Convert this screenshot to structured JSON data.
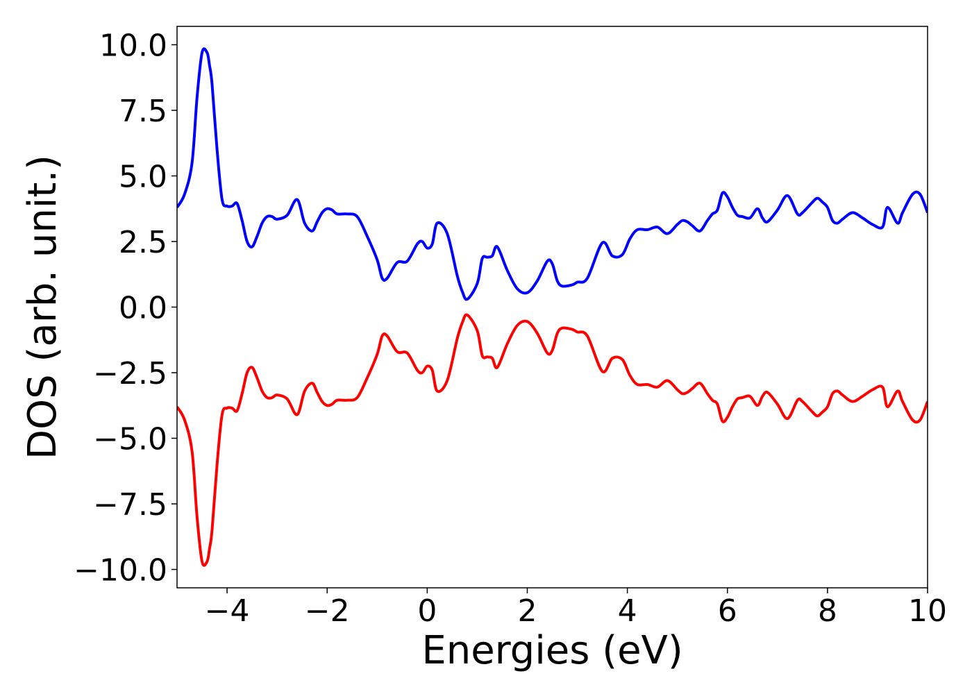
{
  "chart_data": {
    "type": "line",
    "title": "",
    "xlabel": "Energies (eV)",
    "ylabel": "DOS (arb. unit.)",
    "xlim": [
      -5,
      10
    ],
    "ylim": [
      -10.7,
      10.7
    ],
    "xticks": [
      -4,
      -2,
      0,
      2,
      4,
      6,
      8,
      10
    ],
    "xtick_labels": [
      "−4",
      "−2",
      "0",
      "2",
      "4",
      "6",
      "8",
      "10"
    ],
    "yticks": [
      10,
      7.5,
      5,
      2.5,
      0,
      -2.5,
      -5,
      -7.5,
      -10
    ],
    "ytick_labels": [
      "10.0",
      "7.5",
      "5.0",
      "2.5",
      "0.0",
      "−2.5",
      "−5.0",
      "−7.5",
      "−10.0"
    ],
    "grid": false,
    "legend": "none",
    "series": [
      {
        "color": "#0000ff",
        "x": [
          -5.0,
          -4.85,
          -4.7,
          -4.6,
          -4.5,
          -4.4,
          -4.35,
          -4.3,
          -4.2,
          -4.1,
          -4.0,
          -3.9,
          -3.8,
          -3.7,
          -3.6,
          -3.5,
          -3.4,
          -3.3,
          -3.2,
          -3.1,
          -3.0,
          -2.8,
          -2.6,
          -2.45,
          -2.3,
          -2.2,
          -2.1,
          -2.0,
          -1.9,
          -1.8,
          -1.6,
          -1.4,
          -1.2,
          -1.0,
          -0.9,
          -0.8,
          -0.6,
          -0.4,
          -0.2,
          -0.1,
          0.0,
          0.1,
          0.2,
          0.4,
          0.6,
          0.7,
          0.8,
          1.0,
          1.1,
          1.2,
          1.3,
          1.4,
          1.6,
          1.8,
          2.0,
          2.2,
          2.4,
          2.5,
          2.6,
          2.7,
          2.9,
          3.0,
          3.2,
          3.5,
          3.7,
          3.9,
          4.05,
          4.2,
          4.4,
          4.6,
          4.8,
          5.0,
          5.1,
          5.2,
          5.3,
          5.45,
          5.6,
          5.7,
          5.8,
          5.9,
          6.0,
          6.1,
          6.2,
          6.3,
          6.45,
          6.6,
          6.7,
          6.8,
          7.0,
          7.2,
          7.4,
          7.5,
          7.7,
          7.8,
          7.9,
          8.0,
          8.1,
          8.2,
          8.3,
          8.5,
          8.7,
          8.9,
          9.1,
          9.2,
          9.4,
          9.5,
          9.7,
          9.85,
          10.0
        ],
        "y": [
          3.8,
          4.3,
          5.5,
          8.0,
          9.7,
          9.7,
          9.2,
          8.5,
          6.0,
          4.1,
          3.85,
          3.85,
          3.95,
          3.3,
          2.5,
          2.3,
          2.7,
          3.2,
          3.45,
          3.45,
          3.35,
          3.5,
          4.1,
          3.2,
          2.9,
          3.25,
          3.6,
          3.75,
          3.7,
          3.55,
          3.55,
          3.45,
          2.7,
          1.8,
          1.1,
          1.1,
          1.7,
          1.75,
          2.4,
          2.5,
          2.25,
          2.4,
          3.2,
          2.8,
          1.2,
          0.6,
          0.3,
          0.9,
          1.85,
          1.9,
          1.95,
          2.3,
          1.4,
          0.7,
          0.55,
          1.0,
          1.75,
          1.65,
          1.0,
          0.8,
          0.85,
          0.95,
          1.1,
          2.45,
          1.95,
          2.0,
          2.6,
          2.95,
          2.95,
          3.05,
          2.8,
          3.15,
          3.3,
          3.25,
          3.1,
          2.9,
          3.3,
          3.55,
          3.7,
          4.35,
          4.2,
          3.8,
          3.5,
          3.45,
          3.4,
          3.75,
          3.4,
          3.25,
          3.7,
          4.25,
          3.55,
          3.6,
          4.0,
          4.15,
          4.0,
          3.8,
          3.3,
          3.2,
          3.35,
          3.6,
          3.4,
          3.15,
          3.05,
          3.8,
          3.2,
          3.6,
          4.3,
          4.3,
          3.6
        ],
        "_note": ""
      },
      {
        "color": "#ff0000",
        "x": [
          -5.0,
          -4.85,
          -4.7,
          -4.6,
          -4.5,
          -4.4,
          -4.35,
          -4.3,
          -4.2,
          -4.1,
          -4.0,
          -3.9,
          -3.8,
          -3.7,
          -3.6,
          -3.5,
          -3.4,
          -3.3,
          -3.2,
          -3.1,
          -3.0,
          -2.8,
          -2.6,
          -2.45,
          -2.3,
          -2.2,
          -2.1,
          -2.0,
          -1.9,
          -1.8,
          -1.6,
          -1.4,
          -1.2,
          -1.0,
          -0.9,
          -0.8,
          -0.6,
          -0.4,
          -0.2,
          -0.1,
          0.0,
          0.1,
          0.2,
          0.4,
          0.6,
          0.7,
          0.8,
          1.0,
          1.1,
          1.2,
          1.3,
          1.4,
          1.6,
          1.8,
          2.0,
          2.2,
          2.4,
          2.5,
          2.6,
          2.7,
          2.9,
          3.0,
          3.2,
          3.5,
          3.7,
          3.9,
          4.05,
          4.2,
          4.4,
          4.6,
          4.8,
          5.0,
          5.1,
          5.2,
          5.3,
          5.45,
          5.6,
          5.7,
          5.8,
          5.9,
          6.0,
          6.1,
          6.2,
          6.3,
          6.45,
          6.6,
          6.7,
          6.8,
          7.0,
          7.2,
          7.4,
          7.5,
          7.7,
          7.8,
          7.9,
          8.0,
          8.1,
          8.2,
          8.3,
          8.5,
          8.7,
          8.9,
          9.1,
          9.2,
          9.4,
          9.5,
          9.7,
          9.85,
          10.0
        ],
        "y": [
          -3.8,
          -4.3,
          -5.5,
          -8.0,
          -9.7,
          -9.7,
          -9.2,
          -8.5,
          -6.0,
          -4.1,
          -3.85,
          -3.85,
          -3.95,
          -3.3,
          -2.5,
          -2.3,
          -2.7,
          -3.2,
          -3.45,
          -3.45,
          -3.35,
          -3.5,
          -4.1,
          -3.2,
          -2.9,
          -3.25,
          -3.6,
          -3.75,
          -3.7,
          -3.55,
          -3.55,
          -3.45,
          -2.7,
          -1.8,
          -1.1,
          -1.1,
          -1.7,
          -1.75,
          -2.4,
          -2.5,
          -2.25,
          -2.4,
          -3.2,
          -2.8,
          -1.2,
          -0.6,
          -0.3,
          -0.9,
          -1.85,
          -1.9,
          -1.95,
          -2.3,
          -1.4,
          -0.7,
          -0.55,
          -1.0,
          -1.75,
          -1.65,
          -1.0,
          -0.8,
          -0.85,
          -0.95,
          -1.1,
          -2.45,
          -1.95,
          -2.0,
          -2.6,
          -2.95,
          -2.95,
          -3.05,
          -2.8,
          -3.15,
          -3.3,
          -3.25,
          -3.1,
          -2.9,
          -3.3,
          -3.55,
          -3.7,
          -4.35,
          -4.2,
          -3.8,
          -3.5,
          -3.45,
          -3.4,
          -3.75,
          -3.4,
          -3.25,
          -3.7,
          -4.25,
          -3.55,
          -3.6,
          -4.0,
          -4.15,
          -4.0,
          -3.8,
          -3.3,
          -3.2,
          -3.35,
          -3.6,
          -3.4,
          -3.15,
          -3.05,
          -3.8,
          -3.2,
          -3.6,
          -4.3,
          -4.3,
          -3.6
        ]
      }
    ]
  }
}
